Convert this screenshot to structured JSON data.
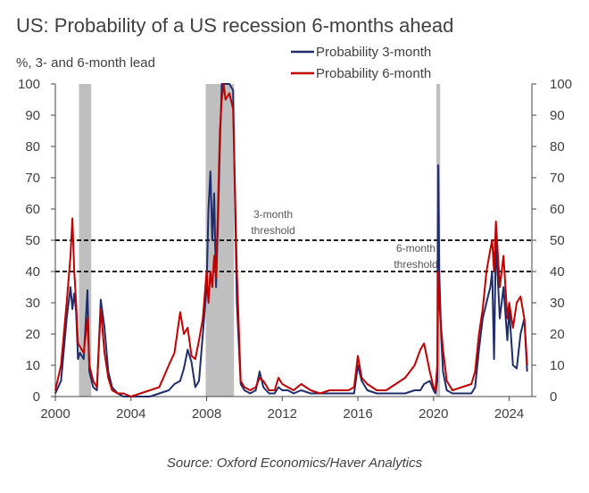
{
  "title": "US: Probability of a US recession 6-months ahead",
  "subtitle": "%, 3- and 6-month lead",
  "source": "Source: Oxford Economics/Haver Analytics",
  "chart_data": {
    "type": "line",
    "xlim": [
      2000,
      2025.2
    ],
    "ylim": [
      0,
      100
    ],
    "x_ticks": [
      2000,
      2004,
      2008,
      2012,
      2016,
      2020,
      2024
    ],
    "y_ticks": [
      0,
      10,
      20,
      30,
      40,
      50,
      60,
      70,
      80,
      90,
      100
    ],
    "y_axis_both_sides": true,
    "legend_position": "top-right",
    "recession_shading": [
      {
        "start": 2001.25,
        "end": 2001.9
      },
      {
        "start": 2007.95,
        "end": 2009.45
      },
      {
        "start": 2020.15,
        "end": 2020.35
      }
    ],
    "thresholds": [
      {
        "value": 50,
        "label_line1": "3-month",
        "label_line2": "threshold"
      },
      {
        "value": 40,
        "label_line1": "6-month",
        "label_line2": "threshold"
      }
    ],
    "series": [
      {
        "name": "Probability 3-month",
        "color": "#1f2d6b",
        "x": [
          2000.0,
          2000.3,
          2000.6,
          2000.8,
          2000.9,
          2001.0,
          2001.1,
          2001.2,
          2001.3,
          2001.5,
          2001.7,
          2001.8,
          2002.0,
          2002.2,
          2002.4,
          2002.6,
          2002.8,
          2003.0,
          2003.3,
          2003.6,
          2004.0,
          2004.5,
          2005.0,
          2005.5,
          2006.0,
          2006.3,
          2006.6,
          2006.8,
          2007.0,
          2007.2,
          2007.4,
          2007.6,
          2007.8,
          2008.0,
          2008.1,
          2008.2,
          2008.3,
          2008.4,
          2008.5,
          2008.6,
          2008.7,
          2008.8,
          2008.9,
          2009.0,
          2009.2,
          2009.4,
          2009.6,
          2009.8,
          2010.0,
          2010.3,
          2010.6,
          2010.8,
          2011.0,
          2011.3,
          2011.6,
          2011.8,
          2012.0,
          2012.3,
          2012.6,
          2013.0,
          2013.5,
          2014.0,
          2014.5,
          2015.0,
          2015.5,
          2015.8,
          2016.0,
          2016.2,
          2016.5,
          2017.0,
          2017.5,
          2018.0,
          2018.5,
          2019.0,
          2019.3,
          2019.5,
          2019.8,
          2020.0,
          2020.1,
          2020.2,
          2020.25,
          2020.3,
          2020.4,
          2020.5,
          2020.7,
          2021.0,
          2021.5,
          2022.0,
          2022.2,
          2022.4,
          2022.6,
          2022.8,
          2023.0,
          2023.1,
          2023.2,
          2023.3,
          2023.5,
          2023.7,
          2023.9,
          2024.0,
          2024.2,
          2024.4,
          2024.6,
          2024.8,
          2024.95
        ],
        "y": [
          1,
          5,
          25,
          35,
          28,
          33,
          27,
          12,
          14,
          12,
          34,
          8,
          3,
          2,
          31,
          22,
          8,
          3,
          1,
          0,
          0,
          0,
          0,
          1,
          2,
          4,
          5,
          9,
          15,
          11,
          3,
          5,
          20,
          35,
          60,
          72,
          50,
          65,
          35,
          55,
          80,
          100,
          100,
          100,
          100,
          98,
          30,
          4,
          2,
          1,
          2,
          8,
          3,
          1,
          1,
          3,
          2,
          2,
          1,
          2,
          1,
          1,
          1,
          1,
          1,
          1,
          10,
          5,
          2,
          1,
          1,
          1,
          1,
          2,
          2,
          4,
          5,
          2,
          1,
          5,
          74,
          40,
          20,
          8,
          2,
          1,
          1,
          1,
          3,
          15,
          25,
          30,
          35,
          40,
          12,
          50,
          25,
          35,
          18,
          28,
          10,
          9,
          20,
          25,
          8
        ]
      },
      {
        "name": "Probability 6-month",
        "color": "#c00000",
        "x": [
          2000.0,
          2000.3,
          2000.6,
          2000.8,
          2000.9,
          2001.0,
          2001.1,
          2001.2,
          2001.3,
          2001.5,
          2001.7,
          2001.8,
          2002.0,
          2002.2,
          2002.4,
          2002.6,
          2002.8,
          2003.0,
          2003.3,
          2003.6,
          2004.0,
          2004.5,
          2005.0,
          2005.5,
          2006.0,
          2006.3,
          2006.6,
          2006.8,
          2007.0,
          2007.2,
          2007.4,
          2007.6,
          2007.8,
          2008.0,
          2008.1,
          2008.2,
          2008.3,
          2008.4,
          2008.5,
          2008.6,
          2008.7,
          2008.8,
          2008.9,
          2009.0,
          2009.2,
          2009.4,
          2009.6,
          2009.8,
          2010.0,
          2010.3,
          2010.6,
          2010.8,
          2011.0,
          2011.3,
          2011.6,
          2011.8,
          2012.0,
          2012.3,
          2012.6,
          2013.0,
          2013.5,
          2014.0,
          2014.5,
          2015.0,
          2015.5,
          2015.8,
          2016.0,
          2016.2,
          2016.5,
          2017.0,
          2017.5,
          2018.0,
          2018.5,
          2019.0,
          2019.3,
          2019.5,
          2019.8,
          2020.0,
          2020.1,
          2020.2,
          2020.25,
          2020.3,
          2020.4,
          2020.5,
          2020.7,
          2021.0,
          2021.5,
          2022.0,
          2022.2,
          2022.4,
          2022.6,
          2022.8,
          2023.0,
          2023.1,
          2023.2,
          2023.3,
          2023.5,
          2023.7,
          2023.9,
          2024.0,
          2024.2,
          2024.4,
          2024.6,
          2024.8,
          2024.95
        ],
        "y": [
          2,
          10,
          30,
          45,
          57,
          40,
          30,
          17,
          16,
          14,
          25,
          10,
          5,
          3,
          28,
          14,
          6,
          2,
          1,
          1,
          0,
          1,
          2,
          3,
          10,
          14,
          27,
          20,
          22,
          13,
          12,
          18,
          25,
          40,
          30,
          40,
          35,
          45,
          38,
          60,
          85,
          95,
          100,
          95,
          97,
          92,
          40,
          5,
          3,
          2,
          3,
          6,
          5,
          2,
          2,
          6,
          4,
          3,
          2,
          4,
          2,
          1,
          2,
          2,
          2,
          3,
          13,
          6,
          4,
          2,
          2,
          4,
          6,
          10,
          15,
          17,
          8,
          3,
          2,
          10,
          40,
          30,
          22,
          15,
          5,
          2,
          3,
          4,
          8,
          20,
          28,
          40,
          47,
          50,
          40,
          56,
          35,
          45,
          25,
          30,
          22,
          30,
          32,
          25,
          10
        ]
      }
    ]
  }
}
